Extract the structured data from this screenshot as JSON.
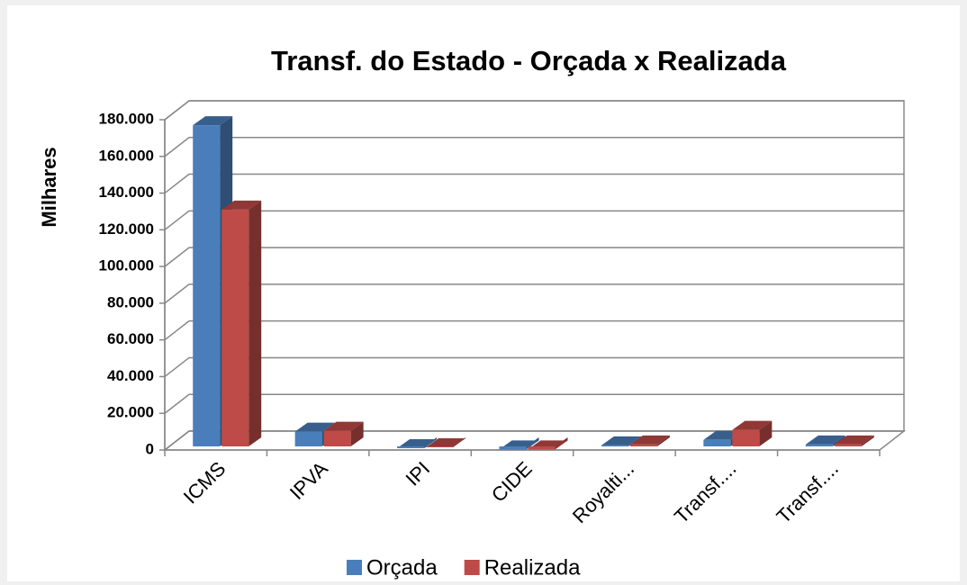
{
  "chart_data": {
    "type": "bar3d",
    "title": "Transf. do Estado - Orçada x Realizada",
    "y_label": "Milhares",
    "categories": [
      "ICMS",
      "IPVA",
      "IPI",
      "CIDE",
      "Royalti...",
      "Transf....",
      "Transf...."
    ],
    "series": [
      {
        "name": "Orçada",
        "color": "#4a7ebb",
        "values": [
          177000,
          10000,
          1000,
          300,
          2500,
          5500,
          3000
        ]
      },
      {
        "name": "Realizada",
        "color": "#be4b48",
        "values": [
          131000,
          10500,
          1500,
          300,
          3000,
          11000,
          3000
        ]
      }
    ],
    "ylim": [
      0,
      180000
    ],
    "yticks": [
      0,
      {
        "value": 20000,
        "label": "20.000"
      },
      {
        "value": 40000,
        "label": "40.000"
      },
      {
        "value": 60000,
        "label": "60.000"
      },
      {
        "value": 80000,
        "label": "80.000"
      },
      {
        "value": 100000,
        "label": "100.000"
      },
      {
        "value": 120000,
        "label": "120.000"
      },
      {
        "value": 140000,
        "label": "140.000"
      },
      {
        "value": 160000,
        "label": "160.000"
      },
      {
        "value": 180000,
        "label": "180.000"
      }
    ],
    "grid": true,
    "legend": "bottom"
  }
}
